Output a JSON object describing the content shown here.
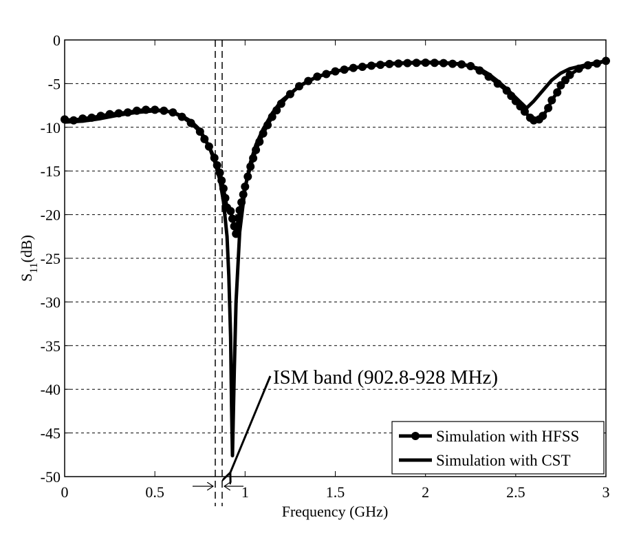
{
  "chart_data": {
    "type": "line",
    "title": "",
    "xlabel": "Frequency (GHz)",
    "ylabel_main": "S",
    "ylabel_sub": "11",
    "ylabel_unit": "(dB)",
    "xlim": [
      0,
      3
    ],
    "ylim": [
      -50,
      0
    ],
    "xticks": [
      0,
      0.5,
      1,
      1.5,
      2,
      2.5,
      3
    ],
    "xtick_labels": [
      "0",
      "0.5",
      "1",
      "1.5",
      "2",
      "2.5",
      "3"
    ],
    "yticks": [
      0,
      -5,
      -10,
      -15,
      -20,
      -25,
      -30,
      -35,
      -40,
      -45,
      -50
    ],
    "ytick_labels": [
      "0",
      "-5",
      "-10",
      "-15",
      "-20",
      "-25",
      "-30",
      "-35",
      "-40",
      "-45",
      "-50"
    ],
    "grid": true,
    "legend_position": "bottom-right",
    "series": [
      {
        "name": "Simulation with HFSS",
        "marker": "circle",
        "color": "#000000",
        "x": [
          0,
          0.05,
          0.1,
          0.15,
          0.2,
          0.25,
          0.3,
          0.35,
          0.4,
          0.45,
          0.5,
          0.55,
          0.6,
          0.65,
          0.7,
          0.75,
          0.8,
          0.83,
          0.86,
          0.88,
          0.9,
          0.92,
          0.95,
          0.97,
          1.0,
          1.03,
          1.06,
          1.1,
          1.15,
          1.2,
          1.25,
          1.3,
          1.35,
          1.4,
          1.45,
          1.5,
          1.6,
          1.7,
          1.8,
          1.9,
          2.0,
          2.1,
          2.2,
          2.25,
          2.3,
          2.35,
          2.4,
          2.45,
          2.5,
          2.55,
          2.58,
          2.6,
          2.63,
          2.65,
          2.68,
          2.7,
          2.73,
          2.75,
          2.8,
          2.85,
          2.9,
          2.95,
          3.0
        ],
        "y": [
          -9.1,
          -9.2,
          -9.0,
          -8.9,
          -8.7,
          -8.5,
          -8.4,
          -8.3,
          -8.1,
          -8.0,
          -8.0,
          -8.1,
          -8.3,
          -8.8,
          -9.5,
          -10.5,
          -12.2,
          -13.5,
          -15.2,
          -17.0,
          -19.2,
          -19.6,
          -22.2,
          -19.5,
          -16.8,
          -14.5,
          -12.6,
          -10.7,
          -8.8,
          -7.3,
          -6.2,
          -5.3,
          -4.7,
          -4.2,
          -3.9,
          -3.6,
          -3.2,
          -2.95,
          -2.75,
          -2.65,
          -2.6,
          -2.65,
          -2.8,
          -3.0,
          -3.5,
          -4.2,
          -5.0,
          -5.8,
          -7.0,
          -8.2,
          -8.9,
          -9.2,
          -9.1,
          -8.7,
          -7.8,
          -6.9,
          -6.0,
          -5.2,
          -4.0,
          -3.3,
          -2.9,
          -2.7,
          -2.4
        ]
      },
      {
        "name": "Simulation with CST",
        "marker": "none",
        "color": "#000000",
        "x": [
          0,
          0.1,
          0.2,
          0.3,
          0.4,
          0.5,
          0.55,
          0.6,
          0.65,
          0.7,
          0.75,
          0.8,
          0.83,
          0.86,
          0.88,
          0.9,
          0.91,
          0.92,
          0.925,
          0.93,
          0.94,
          0.95,
          0.97,
          1.0,
          1.03,
          1.06,
          1.1,
          1.15,
          1.2,
          1.3,
          1.4,
          1.5,
          1.6,
          1.7,
          1.8,
          1.9,
          2.0,
          2.1,
          2.2,
          2.3,
          2.35,
          2.4,
          2.45,
          2.5,
          2.53,
          2.56,
          2.6,
          2.65,
          2.7,
          2.75,
          2.8,
          2.9,
          3.0
        ],
        "y": [
          -9.4,
          -9.3,
          -9.0,
          -8.6,
          -8.3,
          -8.1,
          -8.1,
          -8.3,
          -8.7,
          -9.3,
          -10.3,
          -12.2,
          -13.8,
          -16.0,
          -18.5,
          -22.5,
          -27.0,
          -34.0,
          -42.0,
          -47.6,
          -38.0,
          -30.0,
          -22.0,
          -17.0,
          -14.0,
          -12.0,
          -10.2,
          -8.4,
          -7.0,
          -5.3,
          -4.2,
          -3.6,
          -3.2,
          -2.9,
          -2.7,
          -2.6,
          -2.55,
          -2.6,
          -2.75,
          -3.3,
          -3.9,
          -4.7,
          -5.6,
          -6.6,
          -7.2,
          -7.8,
          -7.0,
          -5.8,
          -4.6,
          -3.8,
          -3.3,
          -2.8,
          -2.4
        ]
      }
    ],
    "annotations": [
      {
        "text": "ISM band (902.8-928 MHz)",
        "points_to": [
          0.9,
          -50
        ]
      }
    ],
    "band_markers": {
      "lower_ghz": 0.9028,
      "upper_ghz": 0.928
    }
  }
}
